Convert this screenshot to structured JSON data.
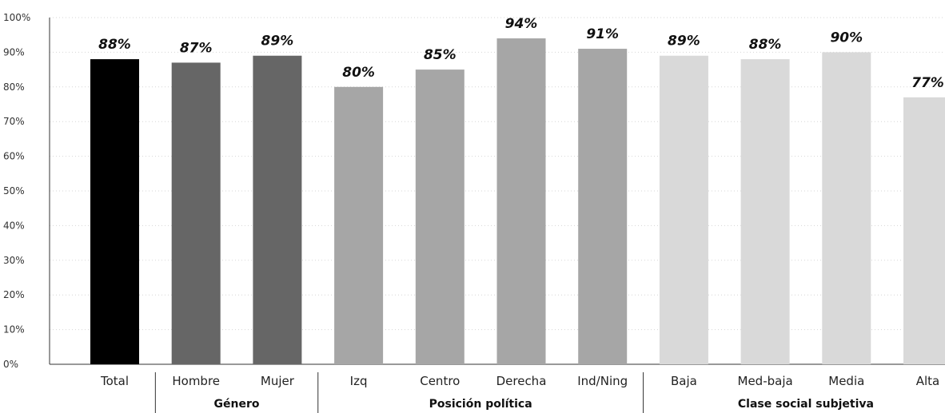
{
  "chart_data": {
    "type": "bar",
    "categories": [
      "Total",
      "Hombre",
      "Mujer",
      "Izq",
      "Centro",
      "Derecha",
      "Ind/Ning",
      "Baja",
      "Med-baja",
      "Media",
      "Alta"
    ],
    "values": [
      88,
      87,
      89,
      80,
      85,
      94,
      91,
      89,
      88,
      90,
      77
    ],
    "value_labels": [
      "88%",
      "87%",
      "89%",
      "80%",
      "85%",
      "94%",
      "91%",
      "89%",
      "88%",
      "90%",
      "77%"
    ],
    "bar_colors": [
      "#000000",
      "#666666",
      "#666666",
      "#a6a6a6",
      "#a6a6a6",
      "#a6a6a6",
      "#a6a6a6",
      "#d9d9d9",
      "#d9d9d9",
      "#d9d9d9",
      "#d9d9d9"
    ],
    "groups": [
      {
        "label": "",
        "start": 0,
        "end": 0
      },
      {
        "label": "Género",
        "start": 1,
        "end": 2
      },
      {
        "label": "Posición política",
        "start": 3,
        "end": 6
      },
      {
        "label": "Clase social subjetiva",
        "start": 7,
        "end": 10
      }
    ],
    "ylim": [
      0,
      100
    ],
    "yticks": [
      0,
      10,
      20,
      30,
      40,
      50,
      60,
      70,
      80,
      90,
      100
    ],
    "ytick_labels": [
      "0%",
      "10%",
      "20%",
      "30%",
      "40%",
      "50%",
      "60%",
      "70%",
      "80%",
      "90%",
      "100%"
    ],
    "grid": true,
    "title": "",
    "xlabel": "",
    "ylabel": ""
  }
}
